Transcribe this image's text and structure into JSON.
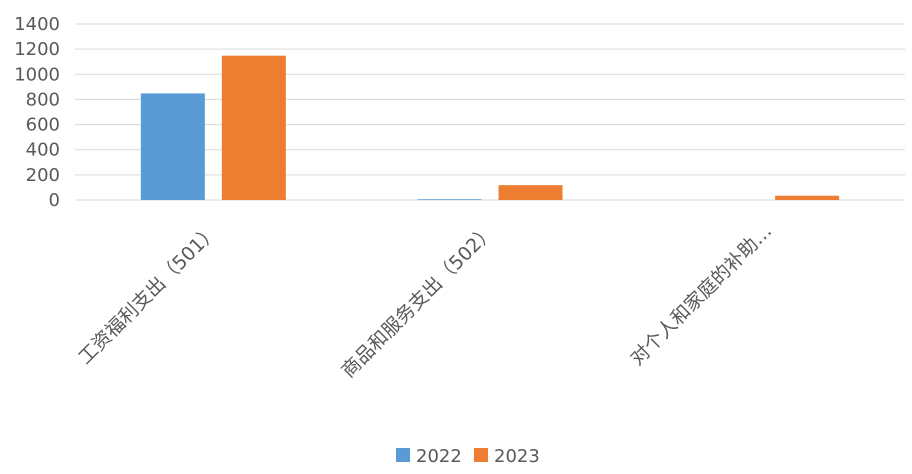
{
  "chart_data": {
    "type": "bar",
    "title": "",
    "xlabel": "",
    "ylabel": "",
    "categories": [
      "工资福利支出（501）",
      "商品和服务支出（502）",
      "对个人和家庭的补助…"
    ],
    "series": [
      {
        "name": "2022",
        "color": "#5b9bd5",
        "values": [
          848,
          6,
          0
        ]
      },
      {
        "name": "2023",
        "color": "#ed7d31",
        "values": [
          1148,
          118,
          34
        ]
      }
    ],
    "ylim": [
      0,
      1400
    ],
    "yticks": [
      0,
      200,
      400,
      600,
      800,
      1000,
      1200,
      1400
    ],
    "grid": true,
    "legend_position": "bottom"
  }
}
